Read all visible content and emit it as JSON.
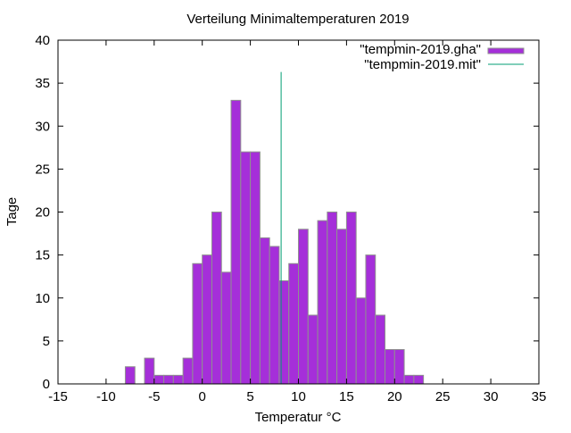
{
  "chart_data": {
    "type": "bar",
    "title": "Verteilung Minimaltemperaturen 2019",
    "xlabel": "Temperatur °C",
    "ylabel": "Tage",
    "xlim": [
      -15,
      35
    ],
    "ylim": [
      0,
      40
    ],
    "xticks": [
      -15,
      -10,
      -5,
      0,
      5,
      10,
      15,
      20,
      25,
      30,
      35
    ],
    "yticks": [
      0,
      5,
      10,
      15,
      20,
      25,
      30,
      35,
      40
    ],
    "grid": false,
    "legend_position": "top-right",
    "bin_width": 1,
    "series": [
      {
        "name": "\"tempmin-2019.gha\"",
        "kind": "histogram",
        "color": "#a52fd9",
        "edge_color": "#909090",
        "bin_left_edges": [
          -8,
          -6,
          -5,
          -4,
          -3,
          -2,
          -1,
          0,
          1,
          2,
          3,
          4,
          5,
          6,
          7,
          8,
          9,
          10,
          11,
          12,
          13,
          14,
          15,
          16,
          17,
          18,
          19,
          20,
          21,
          22
        ],
        "values": [
          2,
          3,
          1,
          1,
          1,
          3,
          14,
          15,
          20,
          13,
          33,
          27,
          27,
          17,
          16,
          12,
          14,
          18,
          8,
          19,
          20,
          18,
          20,
          10,
          15,
          8,
          4,
          4,
          1,
          1
        ]
      },
      {
        "name": "\"tempmin-2019.mit\"",
        "kind": "impulse",
        "color": "#009e73",
        "x": 8.2,
        "y": 36.3
      }
    ]
  }
}
